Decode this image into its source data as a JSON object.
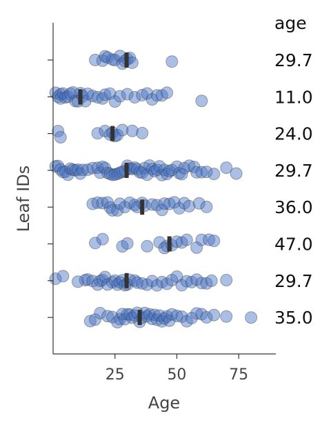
{
  "chart_data": {
    "type": "scatter",
    "xlabel": "Age",
    "ylabel": "Leaf IDs",
    "right_header": "age",
    "xlim": [
      0,
      90
    ],
    "xticks": [
      25,
      50,
      75
    ],
    "colors": {
      "point": "#4472c4",
      "marker": "#333333",
      "axis": "#333333",
      "text": "#444444"
    },
    "leaves": [
      {
        "label": "29.7",
        "marker": 29.7,
        "ages": [
          17,
          20,
          21,
          22,
          24,
          25,
          27,
          28,
          29,
          30,
          31,
          32,
          48
        ]
      },
      {
        "label": "11.0",
        "marker": 11.0,
        "ages": [
          1,
          2,
          3,
          3,
          4,
          5,
          6,
          7,
          8,
          9,
          10,
          11,
          12,
          13,
          14,
          16,
          18,
          20,
          21,
          23,
          25,
          27,
          30,
          33,
          36,
          38,
          40,
          42,
          44,
          46,
          60
        ]
      },
      {
        "label": "24.0",
        "marker": 24.0,
        "ages": [
          2,
          3,
          18,
          21,
          23,
          24,
          25,
          26,
          28,
          32,
          36
        ]
      },
      {
        "label": "29.7",
        "marker": 29.7,
        "ages": [
          1,
          2,
          3,
          4,
          5,
          6,
          7,
          8,
          9,
          10,
          11,
          12,
          14,
          16,
          18,
          19,
          20,
          21,
          22,
          23,
          24,
          25,
          26,
          27,
          28,
          29,
          30,
          31,
          32,
          33,
          34,
          35,
          36,
          37,
          38,
          39,
          40,
          41,
          42,
          43,
          44,
          45,
          46,
          47,
          48,
          50,
          51,
          52,
          53,
          55,
          57,
          58,
          60,
          62,
          65,
          70,
          74
        ]
      },
      {
        "label": "36.0",
        "marker": 36.0,
        "ages": [
          16,
          18,
          20,
          22,
          23,
          24,
          26,
          27,
          29,
          31,
          33,
          34,
          36,
          37,
          40,
          42,
          44,
          45,
          47,
          49,
          51,
          53,
          55,
          59,
          62
        ]
      },
      {
        "label": "47.0",
        "marker": 47.0,
        "ages": [
          17,
          20,
          28,
          30,
          38,
          43,
          45,
          46,
          48,
          50,
          52,
          54,
          58,
          60,
          63,
          65
        ]
      },
      {
        "label": "29.7",
        "marker": 29.7,
        "ages": [
          1,
          4,
          10,
          13,
          14,
          16,
          18,
          19,
          20,
          21,
          22,
          24,
          25,
          26,
          27,
          28,
          29,
          30,
          31,
          33,
          34,
          36,
          38,
          40,
          42,
          44,
          46,
          48,
          50,
          52,
          54,
          56,
          58,
          60,
          62,
          64,
          70
        ]
      },
      {
        "label": "35.0",
        "marker": 35.0,
        "ages": [
          15,
          17,
          19,
          22,
          24,
          26,
          27,
          28,
          29,
          30,
          31,
          32,
          33,
          34,
          35,
          36,
          37,
          38,
          39,
          40,
          41,
          42,
          43,
          44,
          45,
          46,
          47,
          48,
          50,
          52,
          54,
          56,
          58,
          60,
          62,
          65,
          70,
          80
        ]
      }
    ]
  }
}
